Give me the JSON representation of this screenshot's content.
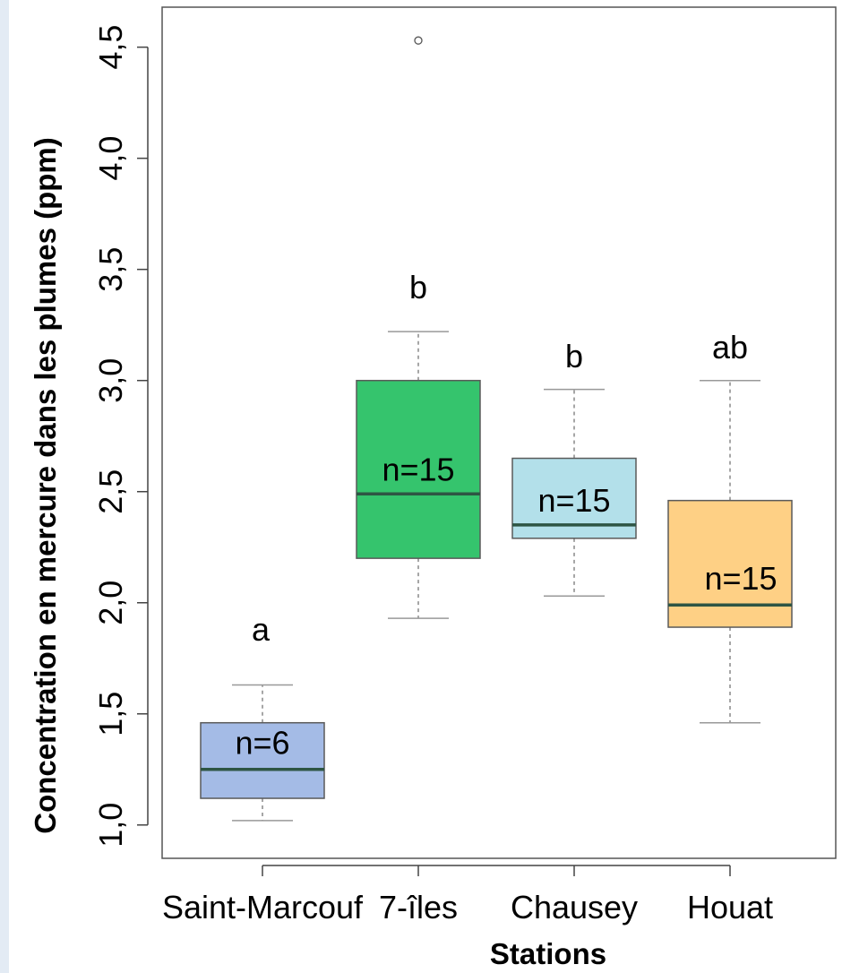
{
  "chart_data": {
    "type": "box",
    "title": "",
    "xlabel": "Stations",
    "ylabel": "Concentration en mercure dans les plumes (ppm)",
    "ylim": [
      0.85,
      4.68
    ],
    "y_ticks": [
      "1,0",
      "1,5",
      "2,0",
      "2,5",
      "3,0",
      "3,5",
      "4,0",
      "4,5"
    ],
    "y_tick_values": [
      1.0,
      1.5,
      2.0,
      2.5,
      3.0,
      3.5,
      4.0,
      4.5
    ],
    "grid": false,
    "legend": "none",
    "categories": [
      "Saint-Marcouf",
      "7-îles",
      "Chausey",
      "Houat"
    ],
    "boxes": [
      {
        "category": "Saint-Marcouf",
        "whisker_low": 1.02,
        "q1": 1.12,
        "median": 1.25,
        "q3": 1.46,
        "whisker_high": 1.63,
        "outliers": [],
        "n_label": "n=6",
        "n_value": 1.32,
        "letter": "a",
        "letter_value": 1.83,
        "color": "#a4bbe6"
      },
      {
        "category": "7-îles",
        "whisker_low": 1.93,
        "q1": 2.2,
        "median": 2.49,
        "q3": 3.0,
        "whisker_high": 3.22,
        "outliers": [
          4.53
        ],
        "n_label": "n=15",
        "n_value": 2.55,
        "letter": "b",
        "letter_value": 3.37,
        "color": "#35c46d"
      },
      {
        "category": "Chausey",
        "whisker_low": 2.03,
        "q1": 2.29,
        "median": 2.35,
        "q3": 2.65,
        "whisker_high": 2.96,
        "outliers": [],
        "n_label": "n=15",
        "n_value": 2.41,
        "letter": "b",
        "letter_value": 3.06,
        "color": "#b3e0ea"
      },
      {
        "category": "Houat",
        "whisker_low": 1.46,
        "q1": 1.89,
        "median": 1.99,
        "q3": 2.46,
        "whisker_high": 3.0,
        "outliers": [],
        "n_label": "n=15",
        "n_value": 2.06,
        "letter": "ab",
        "letter_value": 3.1,
        "color": "#fed085"
      }
    ]
  }
}
